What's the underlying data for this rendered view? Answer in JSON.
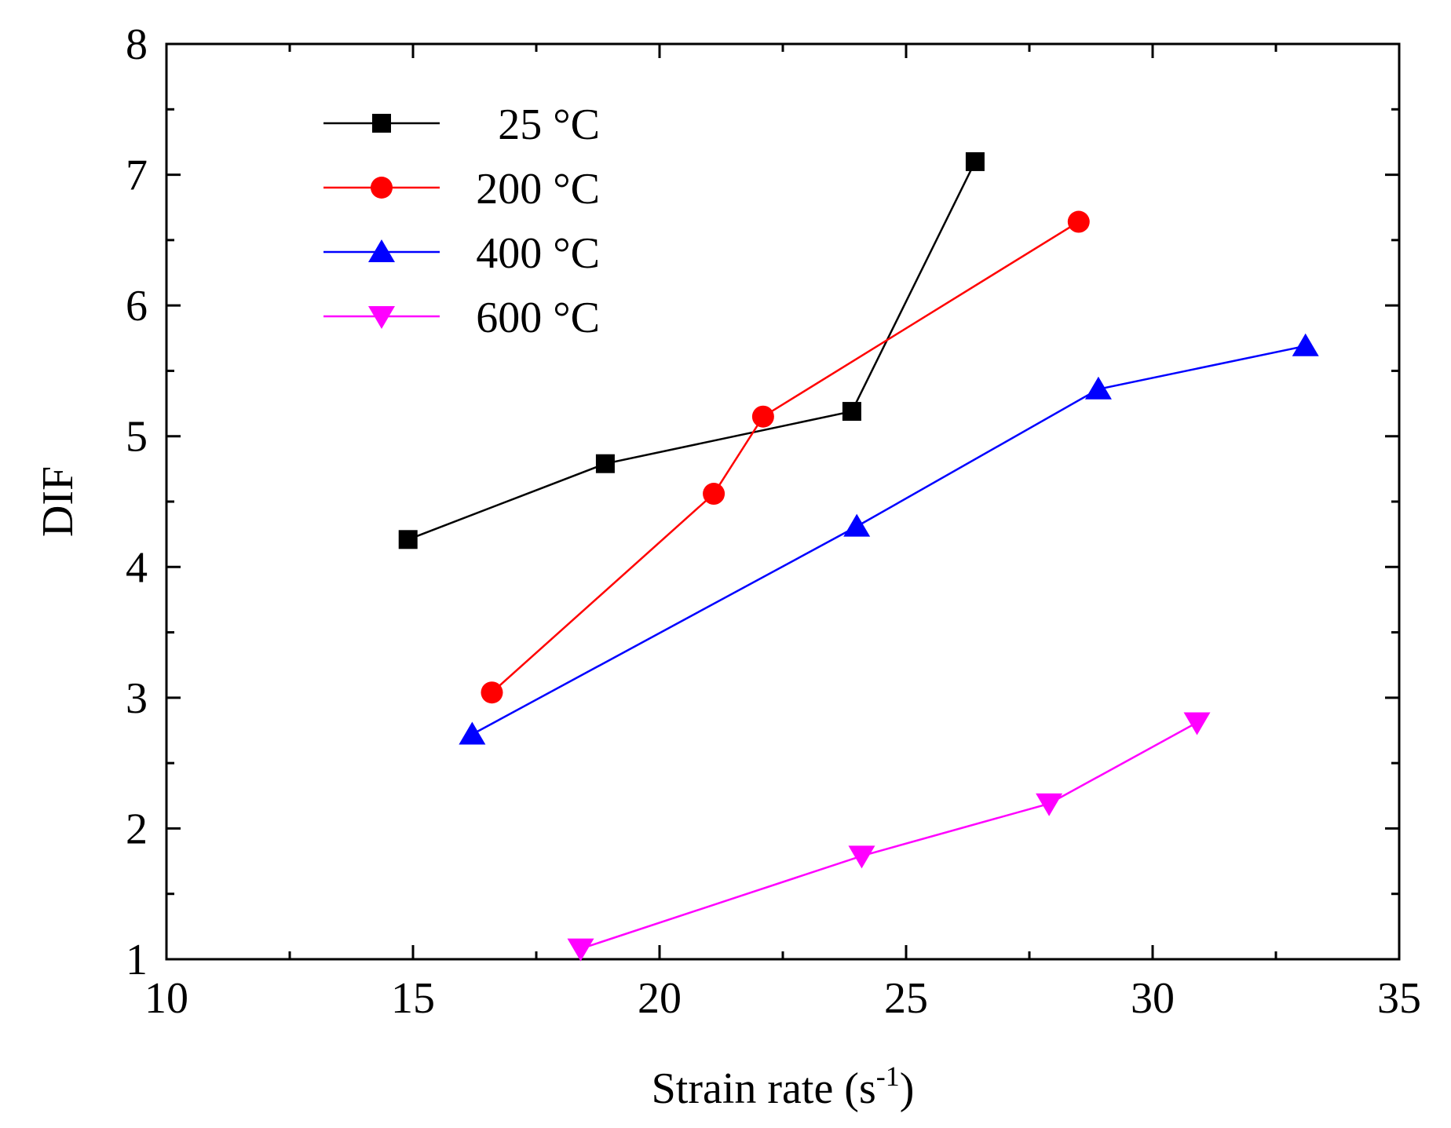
{
  "chart_data": {
    "type": "line",
    "xlabel": "Strain rate (s",
    "xlabel_sup": "-1",
    "xlabel_end": ")",
    "ylabel": "DIF",
    "xlim": [
      10,
      35
    ],
    "ylim": [
      1,
      8
    ],
    "xticks": [
      10,
      15,
      20,
      25,
      30,
      35
    ],
    "xtick_labels": [
      "10",
      "15",
      "20",
      "25",
      "30",
      "35"
    ],
    "yticks": [
      1,
      2,
      3,
      4,
      5,
      6,
      7,
      8
    ],
    "ytick_labels": [
      "1",
      "2",
      "3",
      "4",
      "5",
      "6",
      "7",
      "8"
    ],
    "grid": false,
    "legend_position": "top-left",
    "series": [
      {
        "name": "25 °C",
        "color": "#000000",
        "marker": "square",
        "points": [
          {
            "x": 14.9,
            "y": 4.21
          },
          {
            "x": 18.9,
            "y": 4.79
          },
          {
            "x": 23.9,
            "y": 5.19
          },
          {
            "x": 26.4,
            "y": 7.1
          }
        ]
      },
      {
        "name": "200 °C",
        "color": "#ff0000",
        "marker": "circle",
        "points": [
          {
            "x": 16.6,
            "y": 3.04
          },
          {
            "x": 21.1,
            "y": 4.56
          },
          {
            "x": 22.1,
            "y": 5.15
          },
          {
            "x": 28.5,
            "y": 6.64
          }
        ]
      },
      {
        "name": "400 °C",
        "color": "#0000ff",
        "marker": "triangle-up",
        "points": [
          {
            "x": 16.2,
            "y": 2.72
          },
          {
            "x": 24.0,
            "y": 4.31
          },
          {
            "x": 28.9,
            "y": 5.36
          },
          {
            "x": 33.1,
            "y": 5.69
          }
        ]
      },
      {
        "name": "600 °C",
        "color": "#ff00ff",
        "marker": "triangle-down",
        "points": [
          {
            "x": 18.4,
            "y": 1.08
          },
          {
            "x": 24.1,
            "y": 1.79
          },
          {
            "x": 27.9,
            "y": 2.19
          },
          {
            "x": 30.9,
            "y": 2.81
          }
        ]
      }
    ]
  }
}
